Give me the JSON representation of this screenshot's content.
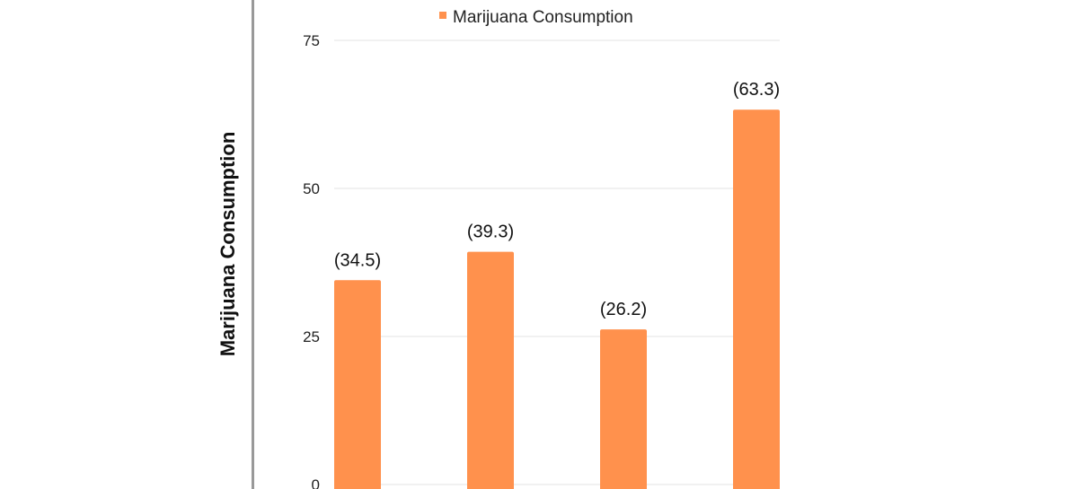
{
  "chart_data": {
    "type": "bar",
    "categories": [
      "",
      "",
      "",
      ""
    ],
    "series": [
      {
        "name": "Marijuana Consumption",
        "values": [
          34.5,
          39.3,
          26.2,
          63.3
        ]
      }
    ],
    "data_labels": [
      "(34.5)",
      "(39.3)",
      "(26.2)",
      "(63.3)"
    ],
    "ylabel": "Marijuana Consumption",
    "ylim": [
      0,
      75
    ],
    "yticks": [
      0,
      25,
      50,
      75
    ],
    "grid": true,
    "legend_position": "top",
    "colors": {
      "bar": "#FF914D",
      "grid": "#E3E3E3",
      "axis_border": "#999999"
    }
  }
}
